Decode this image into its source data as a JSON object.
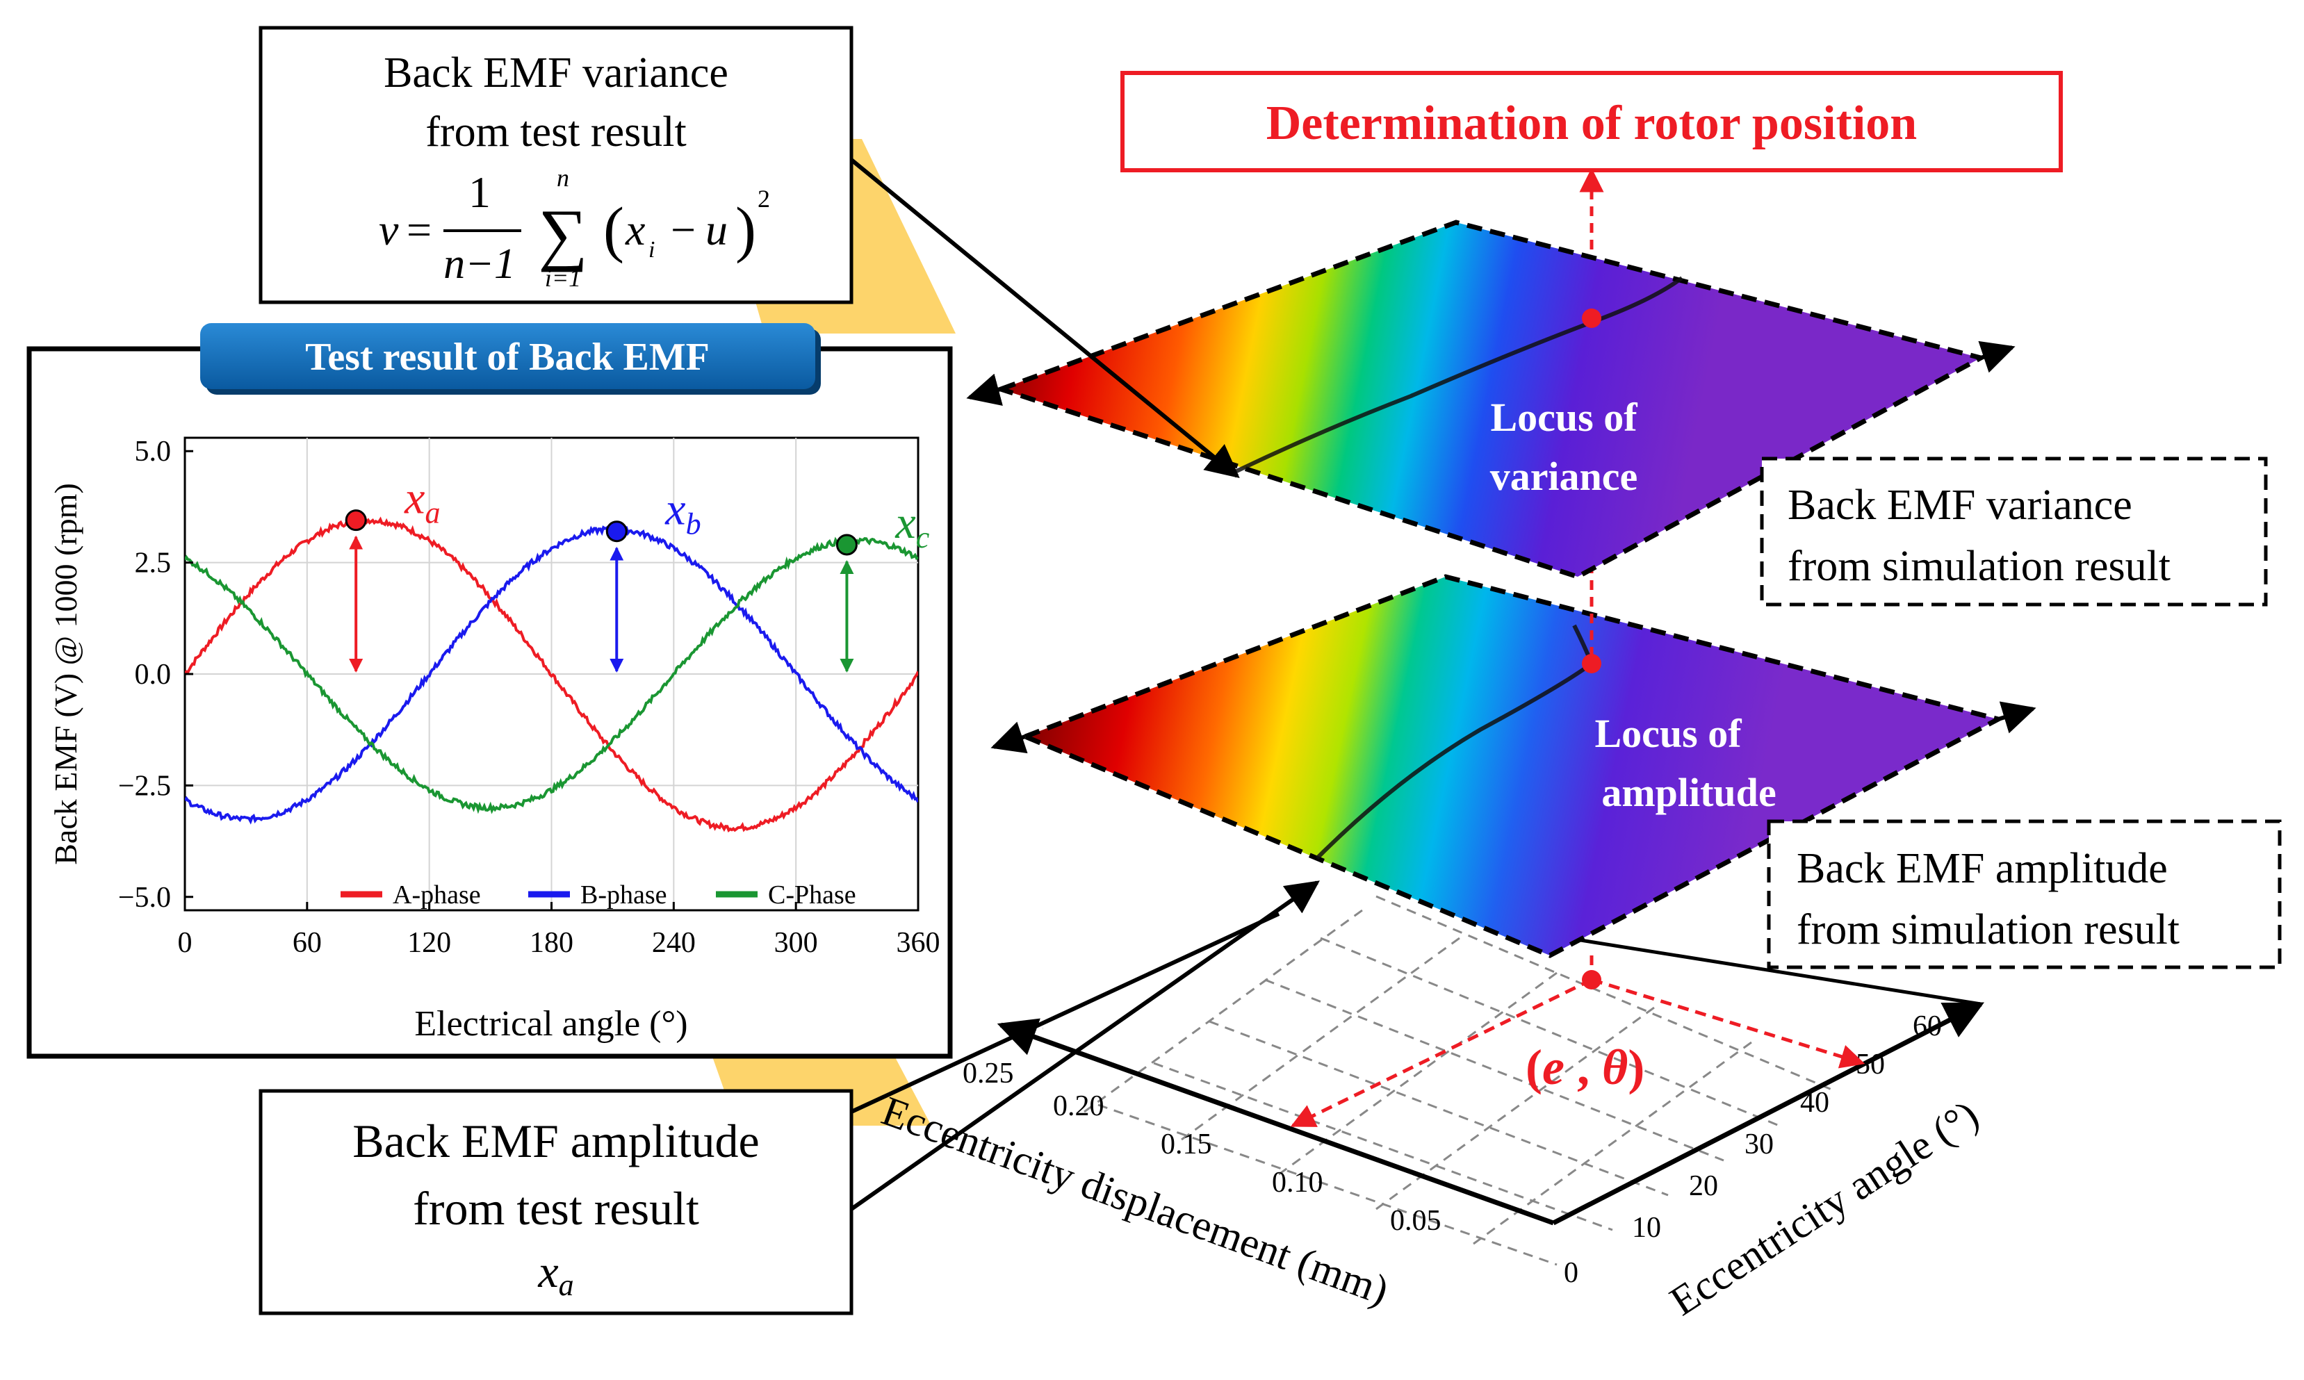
{
  "title_box": {
    "label": "Determination of rotor position",
    "color": "#ee1c24"
  },
  "variance_test": {
    "line1": "Back EMF variance",
    "line2": "from test result",
    "var": "v",
    "eq": "=",
    "frac_num": "1",
    "frac_den": "n−1",
    "sum_top": "n",
    "sum_bottom": "i=1",
    "sum_symbol": "∑",
    "term_open": "(",
    "term_x": "x",
    "term_i": "i",
    "term_minus": "−",
    "term_u": "u",
    "term_close": ")",
    "term_sq": "2"
  },
  "amplitude_test": {
    "line1": "Back EMF amplitude",
    "line2": "from test result",
    "symbol": "x",
    "symbol_sub": "a"
  },
  "test_panel": {
    "banner": "Test result of Back EMF",
    "banner_color": "#0f6ab4"
  },
  "chart_data": {
    "type": "line",
    "title": "Test result of Back EMF",
    "xlabel": "Electrical angle (°)",
    "ylabel": "Back EMF (V) @ 1000 (rpm)",
    "xlim": [
      0,
      360
    ],
    "ylim": [
      -5.3,
      5.3
    ],
    "x_ticks": [
      0,
      60,
      120,
      180,
      240,
      300,
      360
    ],
    "y_ticks": [
      -5.0,
      -2.5,
      0.0,
      2.5,
      5.0
    ],
    "y_tick_labels": [
      "−5.0",
      "−2.5",
      "0.0",
      "2.5",
      "5.0"
    ],
    "grid": true,
    "series": [
      {
        "name": "A-phase",
        "color": "#ee1c24",
        "amplitude": 3.45,
        "peak_angle_deg": 90
      },
      {
        "name": "B-phase",
        "color": "#1a1aee",
        "amplitude": 3.25,
        "peak_angle_deg": 210
      },
      {
        "name": "C-Phase",
        "color": "#1a9632",
        "amplitude": 3.0,
        "peak_angle_deg": 330
      }
    ],
    "markers": [
      {
        "label": "x",
        "sub": "a",
        "angle": 84,
        "value": 3.45,
        "color": "#ee1c24"
      },
      {
        "label": "x",
        "sub": "b",
        "angle": 212,
        "value": 3.2,
        "color": "#1a1aee"
      },
      {
        "label": "x",
        "sub": "c",
        "angle": 325,
        "value": 2.9,
        "color": "#1a9632"
      }
    ],
    "legend_position": "bottom"
  },
  "surfaces": {
    "variance_label_1": "Locus of",
    "variance_label_2": "variance",
    "amplitude_label_1": "Locus of",
    "amplitude_label_2": "amplitude"
  },
  "sim_variance": {
    "line1": "Back EMF variance",
    "line2": "from simulation result"
  },
  "sim_amplitude": {
    "line1": "Back EMF amplitude",
    "line2": "from simulation result"
  },
  "base_plot": {
    "result_open": "(",
    "result_e": "e",
    "result_comma": " , ",
    "result_theta": "θ",
    "result_close": ")",
    "result_color": "#ee1c24",
    "x_axis_label": "Eccentricity displacement (mm)",
    "y_axis_label": "Eccentricity angle (°)",
    "x_ticks": [
      "0.25",
      "0.20",
      "0.15",
      "0.10",
      "0.05"
    ],
    "y_ticks": [
      "0",
      "10",
      "20",
      "30",
      "40",
      "50",
      "60"
    ]
  }
}
